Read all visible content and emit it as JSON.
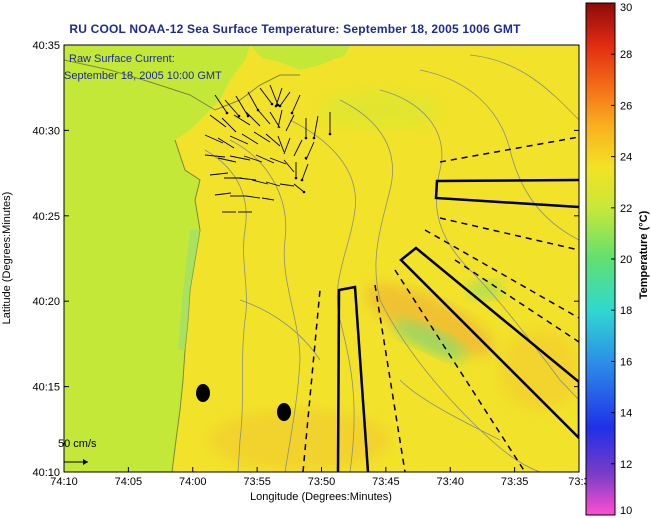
{
  "title": "RU COOL  NOAA-12  Sea Surface Temperature:  September 18, 2005 1006 GMT",
  "legend": {
    "line1": "Raw Surface Current:",
    "line2": "September 18, 2005 10:00 GMT"
  },
  "scale_label": "50 cm/s",
  "axes": {
    "xlabel": "Longitude (Degrees:Minutes)",
    "ylabel": "Latitude (Degrees:Minutes)",
    "x_ticks": [
      "74:10",
      "74:05",
      "74:00",
      "73:55",
      "73:50",
      "73:45",
      "73:40",
      "73:35",
      "73:3"
    ],
    "y_ticks": [
      "40:35",
      "40:30",
      "40:25",
      "40:20",
      "40:15",
      "40:10"
    ]
  },
  "colorbar": {
    "label": "Temperature (°C)",
    "ticks": [
      "30",
      "28",
      "26",
      "24",
      "22",
      "20",
      "18",
      "16",
      "14",
      "12",
      "10"
    ],
    "min": 10,
    "max": 30
  },
  "colors": {
    "ocean": "#f2e22a",
    "land": "#c4e838",
    "warm_patch": "#f0a838",
    "cool_patch": "#8fd96a",
    "title": "#1c2a9a"
  }
}
